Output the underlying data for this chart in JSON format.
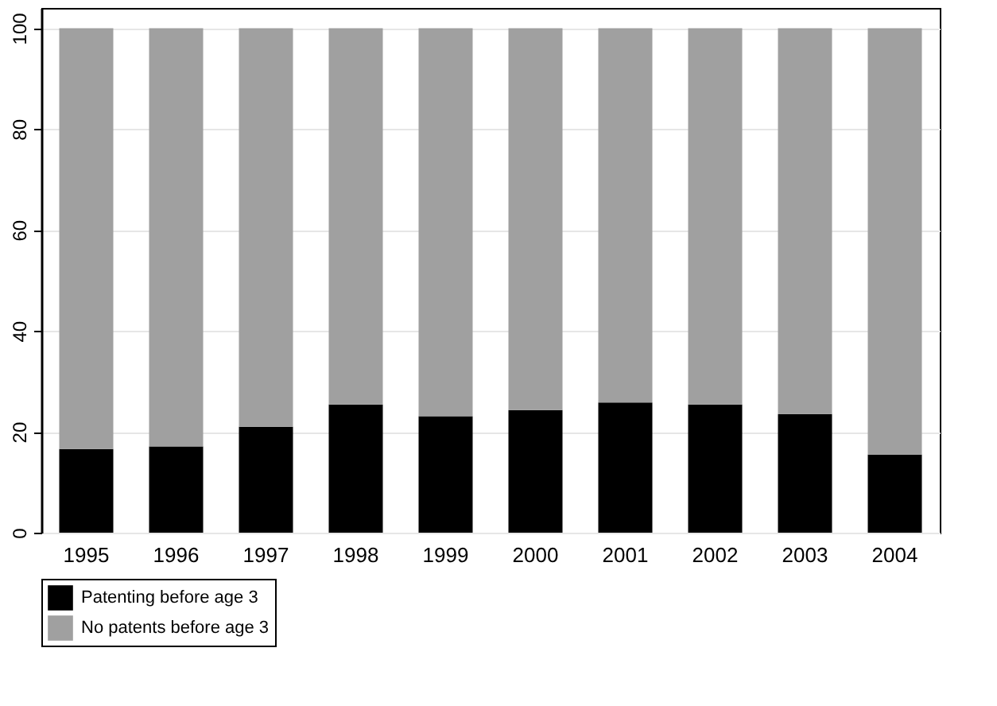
{
  "chart_data": {
    "type": "bar",
    "stacked": true,
    "categories": [
      "1995",
      "1996",
      "1997",
      "1998",
      "1999",
      "2000",
      "2001",
      "2002",
      "2003",
      "2004"
    ],
    "series": [
      {
        "name": "Patenting before age 3",
        "color": "#000000",
        "values": [
          16.6,
          17.1,
          21.0,
          25.4,
          23.1,
          24.3,
          25.8,
          25.4,
          23.5,
          15.5
        ]
      },
      {
        "name": "No patents before age 3",
        "color": "#a0a0a0",
        "values": [
          83.4,
          82.9,
          79.0,
          74.6,
          76.9,
          75.7,
          74.2,
          74.6,
          76.5,
          84.5
        ]
      }
    ],
    "ylim": [
      0,
      104
    ],
    "yticks": [
      0,
      20,
      40,
      60,
      80,
      100
    ],
    "grid": "y",
    "legend": "bottom"
  }
}
